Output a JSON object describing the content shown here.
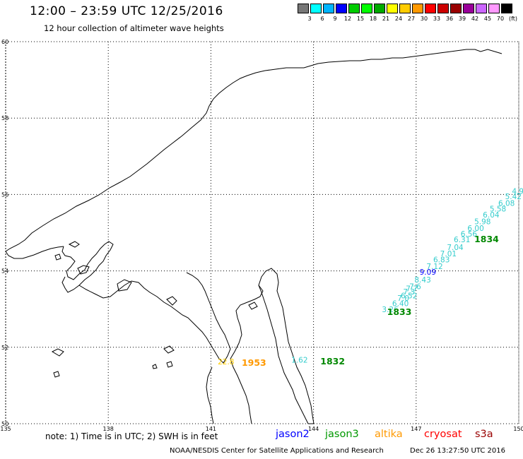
{
  "header": {
    "title": "12:00 – 23:59 UTC 12/25/2016",
    "subtitle": "12 hour collection of altimeter wave heights"
  },
  "legend": {
    "colors": [
      "#777777",
      "#00ffff",
      "#00b4ff",
      "#0000ff",
      "#00cc00",
      "#00ff00",
      "#00aa00",
      "#ffff00",
      "#ffcc00",
      "#ff9900",
      "#ff0000",
      "#cc0000",
      "#990000",
      "#990099",
      "#cc66ff",
      "#ff99ff",
      "#000000"
    ],
    "labels": [
      "3",
      "6",
      "9",
      "12",
      "15",
      "18",
      "21",
      "24",
      "27",
      "30",
      "33",
      "36",
      "39",
      "42",
      "45",
      "70",
      "(ft)"
    ]
  },
  "map": {
    "lon_range": [
      135,
      150
    ],
    "lat_range": [
      50,
      60
    ],
    "lon_labels": [
      "135",
      "138",
      "141",
      "144",
      "147",
      "150"
    ],
    "lat_labels": [
      "60",
      "58",
      "56",
      "54",
      "52",
      "50"
    ]
  },
  "swh_points": [
    {
      "text": "3.26",
      "lon": 146.0,
      "lat": 52.92,
      "color": "#33cccc"
    },
    {
      "text": "6.40",
      "lon": 146.3,
      "lat": 53.08,
      "color": "#33cccc"
    },
    {
      "text": "7.0",
      "lon": 146.45,
      "lat": 53.22,
      "color": "#33cccc"
    },
    {
      "text": "6.52",
      "lon": 146.55,
      "lat": 53.28,
      "color": "#33cccc"
    },
    {
      "text": "7.3",
      "lon": 146.62,
      "lat": 53.38,
      "color": "#33cccc"
    },
    {
      "text": "7.7",
      "lon": 146.7,
      "lat": 53.47,
      "color": "#33cccc"
    },
    {
      "text": "7.6",
      "lon": 146.8,
      "lat": 53.52,
      "color": "#33cccc"
    },
    {
      "text": "8.43",
      "lon": 146.95,
      "lat": 53.7,
      "color": "#33cccc"
    },
    {
      "text": "9.09",
      "lon": 147.1,
      "lat": 53.9,
      "color": "#0000ff"
    },
    {
      "text": "7.12",
      "lon": 147.3,
      "lat": 54.05,
      "color": "#33cccc"
    },
    {
      "text": "6.83",
      "lon": 147.5,
      "lat": 54.22,
      "color": "#33cccc"
    },
    {
      "text": "7.01",
      "lon": 147.7,
      "lat": 54.38,
      "color": "#33cccc"
    },
    {
      "text": "7.04",
      "lon": 147.9,
      "lat": 54.55,
      "color": "#33cccc"
    },
    {
      "text": "6.31",
      "lon": 148.1,
      "lat": 54.75,
      "color": "#33cccc"
    },
    {
      "text": "6.56",
      "lon": 148.3,
      "lat": 54.9,
      "color": "#33cccc"
    },
    {
      "text": "6.00",
      "lon": 148.5,
      "lat": 55.05,
      "color": "#33cccc"
    },
    {
      "text": "5.98",
      "lon": 148.7,
      "lat": 55.22,
      "color": "#33cccc"
    },
    {
      "text": "6.04",
      "lon": 148.95,
      "lat": 55.4,
      "color": "#33cccc"
    },
    {
      "text": "5.58",
      "lon": 149.15,
      "lat": 55.55,
      "color": "#33cccc"
    },
    {
      "text": "6.08",
      "lon": 149.4,
      "lat": 55.7,
      "color": "#33cccc"
    },
    {
      "text": "5.42",
      "lon": 149.6,
      "lat": 55.88,
      "color": "#33cccc"
    },
    {
      "text": "4.9",
      "lon": 149.8,
      "lat": 56.02,
      "color": "#33cccc"
    },
    {
      "text": "22.8",
      "lon": 141.2,
      "lat": 51.55,
      "color": "#ffcc00"
    },
    {
      "text": "1.62",
      "lon": 143.35,
      "lat": 51.6,
      "color": "#33cccc"
    }
  ],
  "pass_times": [
    {
      "text": "1833",
      "lon": 146.15,
      "lat": 52.85,
      "color": "#008800"
    },
    {
      "text": "1834",
      "lon": 148.7,
      "lat": 54.75,
      "color": "#008800"
    },
    {
      "text": "1953",
      "lon": 141.9,
      "lat": 51.52,
      "color": "#ff9900"
    },
    {
      "text": "1832",
      "lon": 144.2,
      "lat": 51.55,
      "color": "#008800"
    }
  ],
  "footer": {
    "note": "note: 1) Time is in UTC; 2) SWH is in feet",
    "satellites": [
      {
        "name": "jason2",
        "color": "#0000ff"
      },
      {
        "name": "jason3",
        "color": "#009900"
      },
      {
        "name": "altika",
        "color": "#ff9900"
      },
      {
        "name": "cryosat",
        "color": "#ff0000"
      },
      {
        "name": "s3a",
        "color": "#990000"
      }
    ],
    "credit": "NOAA/NESDIS Center for Satellite Applications and Research",
    "timestamp": "Dec 26 13:27:50 UTC 2016"
  }
}
